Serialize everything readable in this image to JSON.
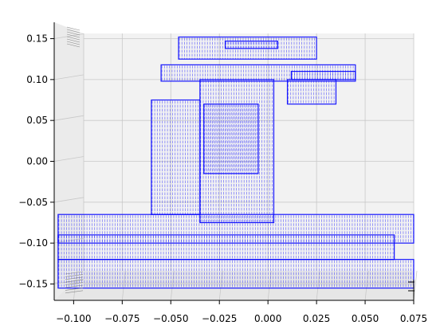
{
  "chart_data": {
    "type": "scatter",
    "projection": "3d",
    "title": "",
    "xlabel": "",
    "ylabel": "",
    "xlim": [
      -0.11,
      0.075
    ],
    "ylim": [
      -0.17,
      0.17
    ],
    "x_ticks": [
      -0.1,
      -0.075,
      -0.05,
      -0.025,
      0.0,
      0.025,
      0.05,
      0.075
    ],
    "x_tick_labels": [
      "−0.100",
      "−0.075",
      "−0.050",
      "−0.025",
      "0.000",
      "0.025",
      "0.050",
      "0.075"
    ],
    "y_ticks": [
      -0.15,
      -0.1,
      -0.05,
      0.0,
      0.05,
      0.1,
      0.15
    ],
    "y_tick_labels": [
      "−0.15",
      "−0.10",
      "−0.05",
      "0.00",
      "0.05",
      "0.10",
      "0.15"
    ],
    "grid": true,
    "marker_color": "#0000ff",
    "point_cloud_boxes": [
      {
        "part": "top-cap",
        "x": [
          -0.046,
          0.025
        ],
        "y": [
          0.125,
          0.152
        ]
      },
      {
        "part": "top-bar",
        "x": [
          -0.022,
          0.005
        ],
        "y": [
          0.138,
          0.147
        ]
      },
      {
        "part": "upper-collar",
        "x": [
          -0.055,
          0.045
        ],
        "y": [
          0.098,
          0.118
        ]
      },
      {
        "part": "right-flange",
        "x": [
          0.012,
          0.045
        ],
        "y": [
          0.1,
          0.11
        ]
      },
      {
        "part": "right-overhang",
        "x": [
          0.01,
          0.035
        ],
        "y": [
          0.07,
          0.1
        ]
      },
      {
        "part": "column-left",
        "x": [
          -0.06,
          -0.035
        ],
        "y": [
          -0.065,
          0.075
        ]
      },
      {
        "part": "column-body",
        "x": [
          -0.035,
          0.003
        ],
        "y": [
          -0.075,
          0.1
        ]
      },
      {
        "part": "column-window",
        "x": [
          -0.033,
          -0.005
        ],
        "y": [
          -0.015,
          0.07
        ]
      },
      {
        "part": "base-top",
        "x": [
          -0.108,
          0.075
        ],
        "y": [
          -0.1,
          -0.065
        ]
      },
      {
        "part": "base-middle",
        "x": [
          -0.108,
          0.065
        ],
        "y": [
          -0.12,
          -0.09
        ]
      },
      {
        "part": "base-bottom",
        "x": [
          -0.108,
          0.075
        ],
        "y": [
          -0.155,
          -0.12
        ]
      }
    ]
  }
}
